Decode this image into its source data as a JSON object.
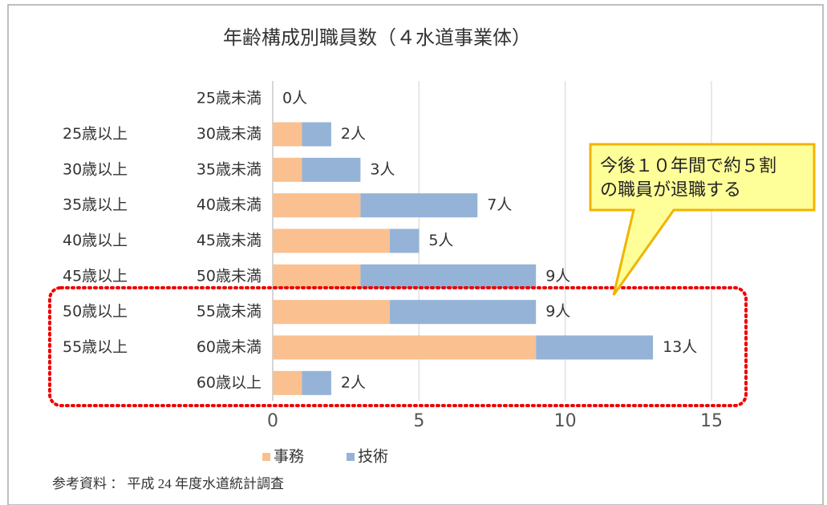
{
  "chart_data": {
    "type": "stacked_barh",
    "title": "年齢構成別職員数（４水道事業体）",
    "categories": [
      [
        "25歳未満"
      ],
      [
        "25歳以上",
        "30歳未満"
      ],
      [
        "30歳以上",
        "35歳未満"
      ],
      [
        "35歳以上",
        "40歳未満"
      ],
      [
        "40歳以上",
        "45歳未満"
      ],
      [
        "45歳以上",
        "50歳未満"
      ],
      [
        "50歳以上",
        "55歳未満"
      ],
      [
        "55歳以上",
        "60歳未満"
      ],
      [
        "60歳以上"
      ]
    ],
    "series": [
      {
        "name": "事務",
        "color": "#fac090",
        "values": [
          0,
          1,
          1,
          3,
          4,
          3,
          4,
          9,
          1
        ]
      },
      {
        "name": "技術",
        "color": "#95b3d7",
        "values": [
          0,
          1,
          2,
          4,
          1,
          6,
          5,
          4,
          1
        ]
      }
    ],
    "totals": [
      0,
      2,
      3,
      7,
      5,
      9,
      9,
      13,
      2
    ],
    "total_labels": [
      "0人",
      "2人",
      "3人",
      "7人",
      "5人",
      "9人",
      "9人",
      "13人",
      "2人"
    ],
    "xlim": [
      0,
      15
    ],
    "xticks": [
      0,
      5,
      10,
      15
    ],
    "grid": true,
    "legend": "bottom",
    "annotation": [
      "今後１０年間で約５割",
      "の職員が退職する"
    ],
    "source": "参考資料 ： 平成 24 年度水道統計調査"
  }
}
